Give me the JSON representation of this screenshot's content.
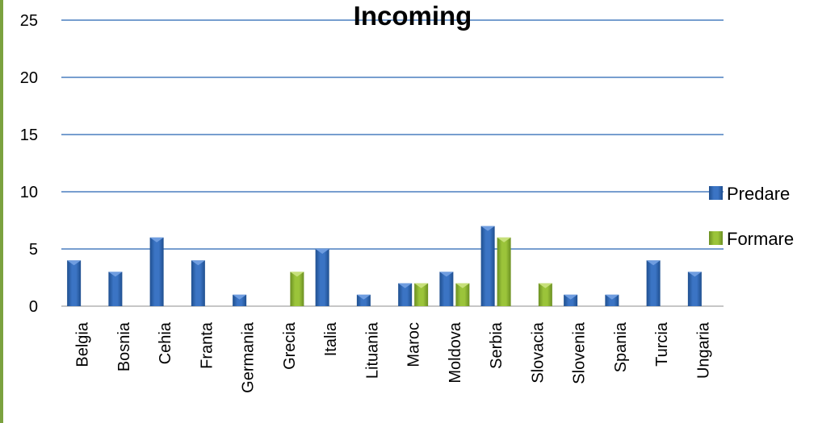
{
  "chart_data": {
    "type": "bar",
    "title": "Incoming",
    "categories": [
      "Belgia",
      "Bosnia",
      "Cehia",
      "Franta",
      "Germania",
      "Grecia",
      "Italia",
      "Lituania",
      "Maroc",
      "Moldova",
      "Serbia",
      "Slovacia",
      "Slovenia",
      "Spania",
      "Turcia",
      "Ungaria"
    ],
    "series": [
      {
        "name": "Predare",
        "color": "#3b74c4",
        "values": [
          4,
          3,
          6,
          4,
          1,
          0,
          5,
          1,
          2,
          3,
          7,
          0,
          1,
          1,
          4,
          3
        ]
      },
      {
        "name": "Formare",
        "color": "#9bc43a",
        "values": [
          0,
          0,
          0,
          0,
          0,
          3,
          0,
          0,
          2,
          2,
          6,
          2,
          0,
          0,
          0,
          0
        ]
      }
    ],
    "ylim": [
      0,
      25
    ],
    "yticks": [
      0,
      5,
      10,
      15,
      20,
      25
    ],
    "grid": true,
    "legend_position": "right",
    "gridline_color": "#4a7ebf"
  }
}
